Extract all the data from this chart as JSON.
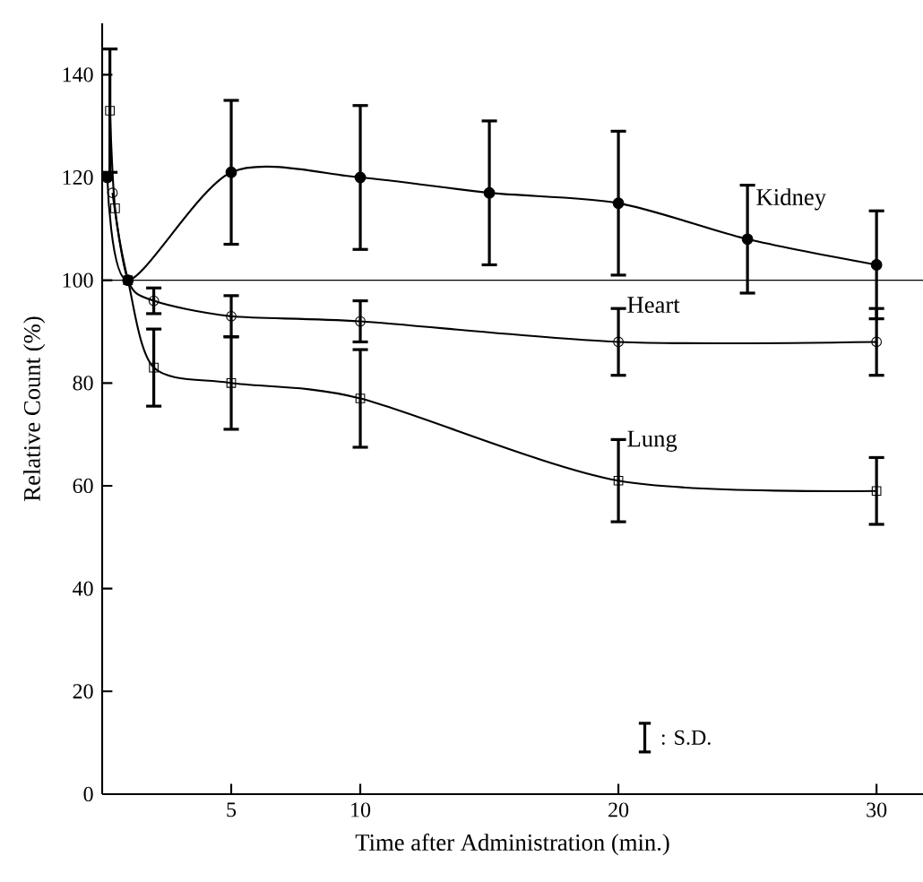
{
  "chart_data": {
    "type": "line",
    "xlabel": "Time after Administration (min.)",
    "ylabel": "Relative Count (%)",
    "xlim": [
      0,
      31.8
    ],
    "ylim": [
      0,
      150
    ],
    "xticks": [
      5,
      10,
      20,
      30
    ],
    "yticks": [
      0,
      20,
      40,
      60,
      80,
      100,
      120,
      140
    ],
    "line_style": "solid",
    "series": [
      {
        "name": "Kidney",
        "color": "#000000",
        "marker": "circle",
        "x": [
          0.2,
          1,
          5,
          10,
          15,
          20,
          25,
          30
        ],
        "values": [
          120,
          100,
          121,
          120,
          117,
          115,
          108,
          103
        ],
        "errors": [
          null,
          null,
          14,
          14,
          14,
          14,
          10.5,
          10.5
        ]
      },
      {
        "name": "Heart",
        "color": "#000000",
        "marker": "circle_open",
        "x": [
          0.4,
          1,
          2,
          5,
          10,
          20,
          30
        ],
        "values": [
          117,
          100,
          96,
          93,
          92,
          88,
          88
        ],
        "errors": [
          null,
          null,
          2.5,
          4,
          4,
          6.5,
          6.5
        ]
      },
      {
        "name": "Lung",
        "color": "#000000",
        "marker": "square_open",
        "x": [
          0.3,
          0.5,
          1,
          2,
          5,
          10,
          20,
          30
        ],
        "values": [
          133,
          114,
          100,
          83,
          80,
          77,
          61,
          59
        ],
        "errors": [
          12,
          null,
          null,
          7.5,
          9,
          9.5,
          8,
          6.5
        ]
      }
    ],
    "ref_lines": [
      {
        "axis": "y",
        "value": 100
      }
    ],
    "annotations": [
      ": S.D."
    ]
  }
}
